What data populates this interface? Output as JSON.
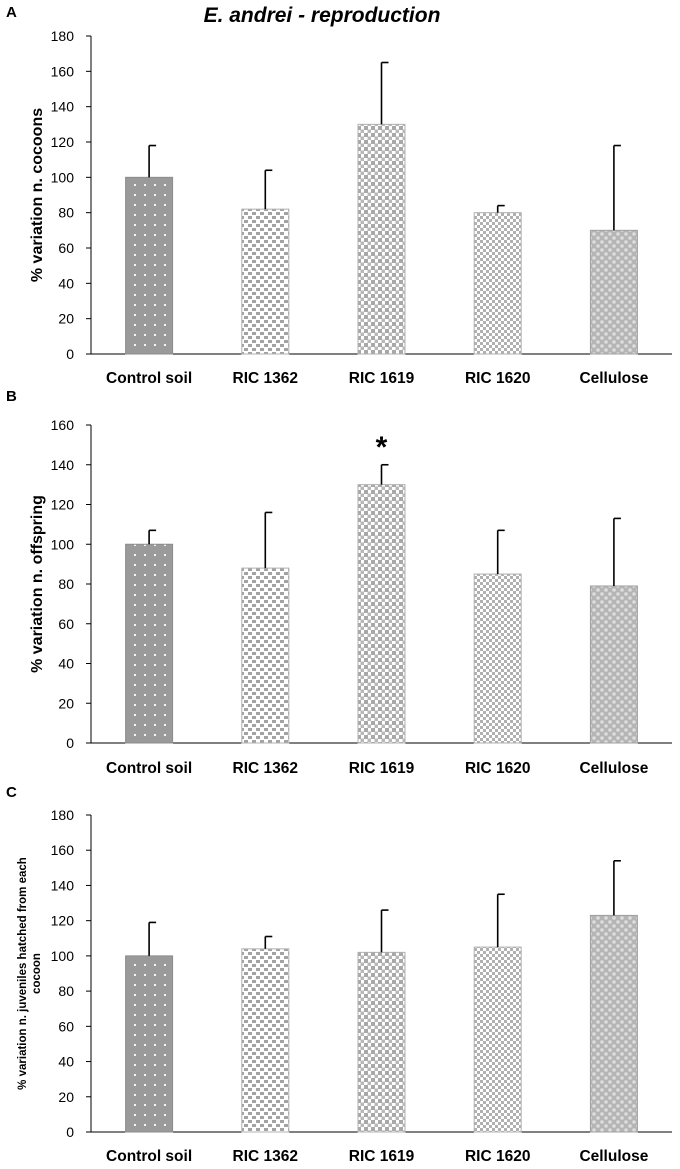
{
  "figure_title": "E. andrei - reproduction",
  "colors": {
    "control": "#999999",
    "treatment": "#a6a6a6",
    "treatment_light": "#b5b5b5",
    "dot": "#ffffff",
    "axis": "#000000"
  },
  "chart_data": [
    {
      "panel": "A",
      "type": "bar",
      "title": "",
      "xlabel": "",
      "ylabel": "% variation n. cocoons",
      "categories": [
        "Control soil",
        "RIC 1362",
        "RIC 1619",
        "RIC 1620",
        "Cellulose"
      ],
      "values": [
        100,
        82,
        130,
        80,
        70
      ],
      "errors": [
        18,
        22,
        35,
        4,
        48
      ],
      "ylim": [
        0,
        180
      ],
      "yticks": [
        "0",
        "20",
        "40",
        "60",
        "80",
        "100",
        "120",
        "140",
        "160",
        "180"
      ],
      "grid": false,
      "annotations": []
    },
    {
      "panel": "B",
      "type": "bar",
      "title": "",
      "xlabel": "",
      "ylabel": "% variation n. offspring",
      "categories": [
        "Control soil",
        "RIC 1362",
        "RIC 1619",
        "RIC 1620",
        "Cellulose"
      ],
      "values": [
        100,
        88,
        130,
        85,
        79
      ],
      "errors": [
        7,
        28,
        10,
        22,
        34
      ],
      "ylim": [
        0,
        160
      ],
      "yticks": [
        "0",
        "20",
        "40",
        "60",
        "80",
        "100",
        "120",
        "140",
        "160"
      ],
      "grid": false,
      "annotations": [
        {
          "category": "RIC 1619",
          "text": "*"
        }
      ]
    },
    {
      "panel": "C",
      "type": "bar",
      "title": "",
      "xlabel": "",
      "ylabel_lines": [
        "% variation n. juveniles hatched from each",
        "cocoon"
      ],
      "categories": [
        "Control soil",
        "RIC 1362",
        "RIC 1619",
        "RIC 1620",
        "Cellulose"
      ],
      "values": [
        100,
        104,
        102,
        105,
        123
      ],
      "errors": [
        19,
        7,
        24,
        30,
        31
      ],
      "ylim": [
        0,
        180
      ],
      "yticks": [
        "0",
        "20",
        "40",
        "60",
        "80",
        "100",
        "120",
        "140",
        "160",
        "180"
      ],
      "grid": false,
      "annotations": []
    }
  ]
}
